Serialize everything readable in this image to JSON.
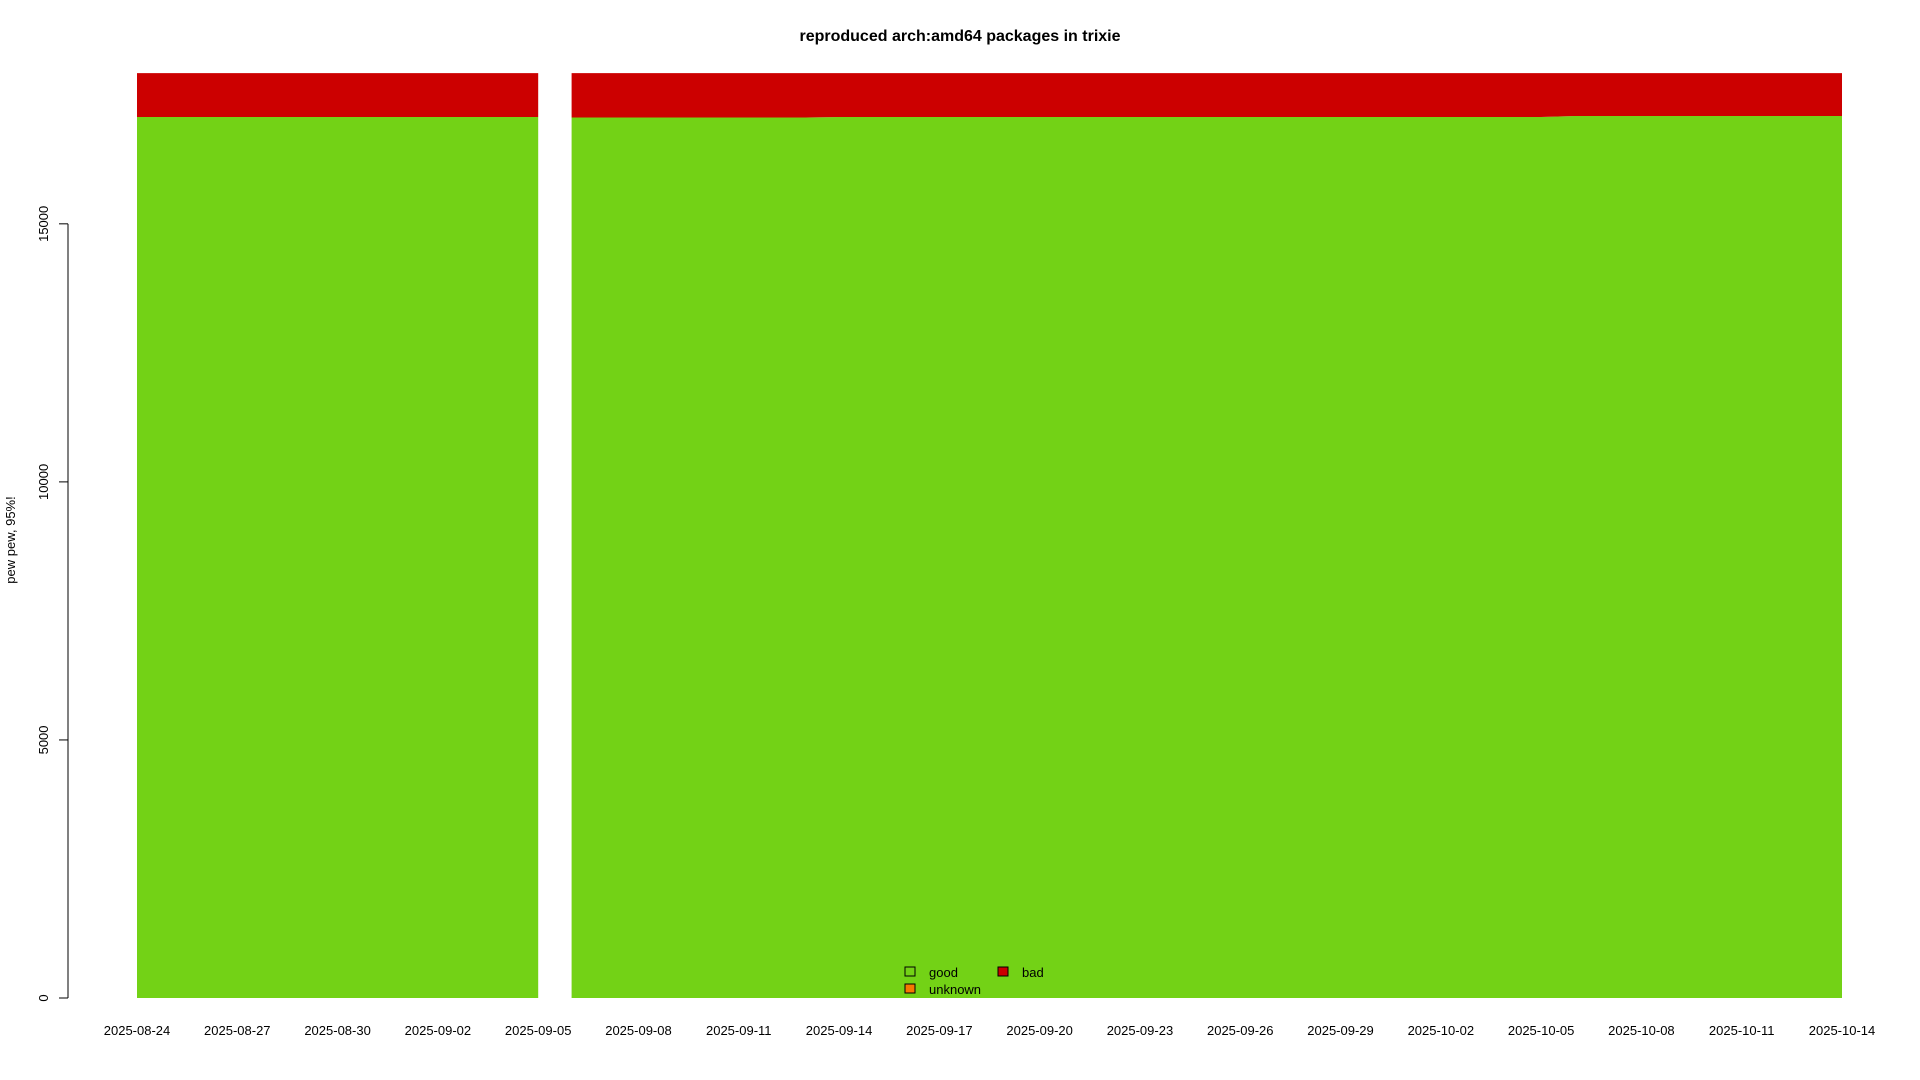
{
  "chart_data": {
    "type": "area",
    "title": "reproduced arch:amd64 packages in trixie",
    "xlabel": "",
    "ylabel": "pew pew, 95%!",
    "x_tick_labels": [
      "2025-08-24",
      "2025-08-27",
      "2025-08-30",
      "2025-09-02",
      "2025-09-05",
      "2025-09-08",
      "2025-09-11",
      "2025-09-14",
      "2025-09-17",
      "2025-09-20",
      "2025-09-23",
      "2025-09-26",
      "2025-09-29",
      "2025-10-02",
      "2025-10-05",
      "2025-10-08",
      "2025-10-11",
      "2025-10-14"
    ],
    "y_ticks": [
      0,
      5000,
      10000,
      15000
    ],
    "ylim": [
      0,
      18000
    ],
    "xlim": [
      "2025-08-24",
      "2025-10-14"
    ],
    "gap": [
      "2025-09-05",
      "2025-09-06"
    ],
    "stacked": true,
    "series": [
      {
        "name": "good",
        "color": "#73d216",
        "x": [
          "2025-08-24",
          "2025-09-05",
          "2025-09-06",
          "2025-09-13",
          "2025-09-14",
          "2025-10-05",
          "2025-10-06",
          "2025-10-14"
        ],
        "values": [
          17070,
          17070,
          17060,
          17060,
          17070,
          17070,
          17090,
          17090
        ]
      },
      {
        "name": "unknown",
        "color": "#f57900",
        "x": [
          "2025-08-24",
          "2025-09-05",
          "2025-09-06",
          "2025-10-14"
        ],
        "values": [
          0,
          0,
          0,
          0
        ]
      },
      {
        "name": "bad",
        "color": "#cc0000",
        "x": [
          "2025-08-24",
          "2025-09-05",
          "2025-09-06",
          "2025-09-13",
          "2025-09-14",
          "2025-10-05",
          "2025-10-06",
          "2025-10-14"
        ],
        "values": [
          850,
          850,
          860,
          860,
          850,
          850,
          830,
          830
        ]
      }
    ],
    "legend": {
      "placement": "bottom-center",
      "entries": [
        "good",
        "bad",
        "unknown"
      ]
    }
  }
}
